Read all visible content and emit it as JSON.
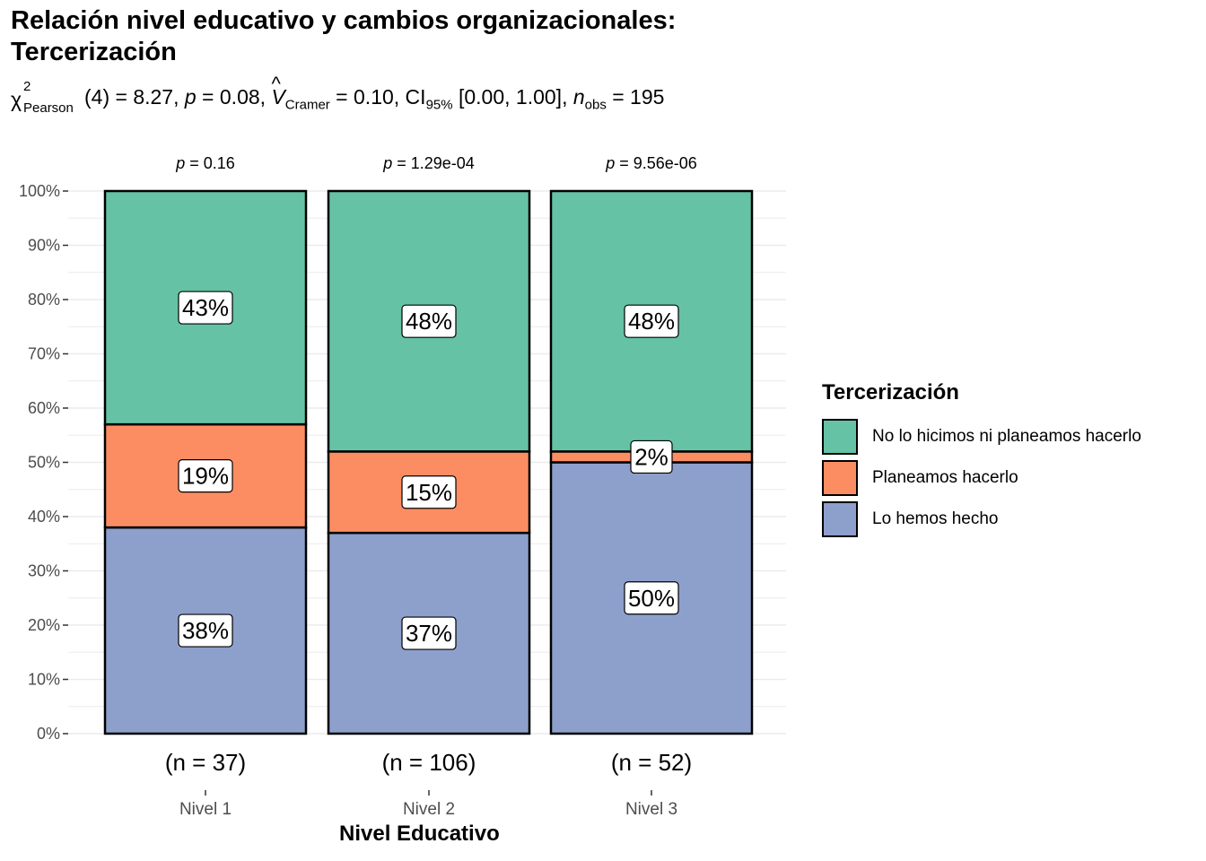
{
  "title": "Relación nivel educativo y cambios organizacionales: Tercerización",
  "subtitle": {
    "chi_symbol": "χ",
    "chi_sup": "2",
    "chi_sub": "Pearson",
    "df_text": "(4) = 8.27, ",
    "p_label": "p",
    "p_text": " = 0.08, ",
    "v_label": "V",
    "v_hat": "^",
    "v_sub": "Cramer",
    "v_text": " = 0.10, CI",
    "ci_sub": "95%",
    "ci_text": " [0.00, 1.00], ",
    "n_label": "n",
    "n_sub": "obs",
    "n_text": " = 195"
  },
  "chart_data": {
    "type": "bar",
    "stacked": true,
    "xlabel": "Nivel Educativo",
    "ylabel": "",
    "ylim": [
      0,
      100
    ],
    "yticks": [
      "0%",
      "10%",
      "20%",
      "30%",
      "40%",
      "50%",
      "60%",
      "70%",
      "80%",
      "90%",
      "100%"
    ],
    "categories": [
      "Nivel 1",
      "Nivel 2",
      "Nivel 3"
    ],
    "counts": [
      "(n = 37)",
      "(n = 106)",
      "(n = 52)"
    ],
    "pvalues": [
      {
        "label": "p",
        "value": " = 0.16"
      },
      {
        "label": "p",
        "value": " = 1.29e-04"
      },
      {
        "label": "p",
        "value": " = 9.56e-06"
      }
    ],
    "legend_title": "Tercerización",
    "legend_position": "right",
    "series": [
      {
        "name": "Lo hemos hecho",
        "color": "#8DA0CB",
        "values": [
          38,
          37,
          50
        ],
        "labels": [
          "38%",
          "37%",
          "50%"
        ]
      },
      {
        "name": "Planeamos hacerlo",
        "color": "#FC8D62",
        "values": [
          19,
          15,
          2
        ],
        "labels": [
          "19%",
          "15%",
          "2%"
        ]
      },
      {
        "name": "No lo hicimos ni planeamos hacerlo",
        "color": "#66C2A5",
        "values": [
          43,
          48,
          48
        ],
        "labels": [
          "43%",
          "48%",
          "48%"
        ]
      }
    ],
    "legend_order": [
      2,
      1,
      0
    ]
  }
}
